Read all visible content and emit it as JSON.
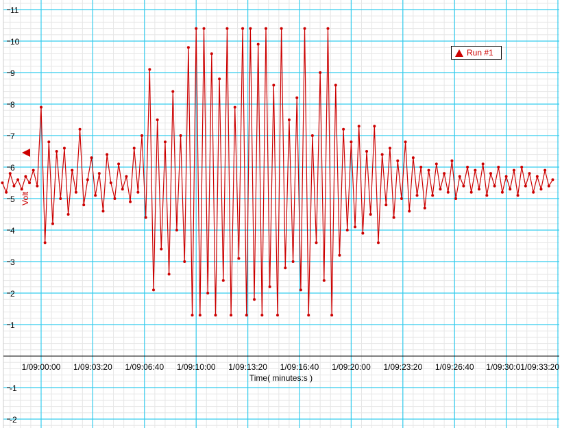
{
  "chart_data": {
    "type": "line",
    "title": "",
    "xlabel": "Time( minutes:s )",
    "ylabel": "Volt",
    "ylim": [
      -2.2,
      11.2
    ],
    "xlim": [
      "1/08:57:42",
      "1/09:33:20"
    ],
    "grid": true,
    "legend_placement": "top-right",
    "x_tick_labels": [
      "1/09:00:00",
      "1/09:03:20",
      "1/09:06:40",
      "1/09:10:00",
      "1/09:13:20",
      "1/09:16:40",
      "1/09:20:00",
      "1/09:23:20",
      "1/09:26:40",
      "1/09:30:01/09:33:20"
    ],
    "y_ticks": [
      -2,
      -1,
      1,
      2,
      3,
      4,
      5,
      6,
      7,
      8,
      9,
      10,
      11
    ],
    "colors": {
      "series": "#cc0000",
      "major_grid": "#33ccee",
      "minor_grid": "#e6e6e6"
    },
    "series": [
      {
        "name": "Run #1",
        "marker": "circle",
        "x": [
          "1/08:57:30",
          "1/08:57:45",
          "1/08:58:00",
          "1/08:58:15",
          "1/08:58:30",
          "1/08:58:45",
          "1/08:59:00",
          "1/08:59:15",
          "1/08:59:30",
          "1/08:59:45",
          "1/09:00:00",
          "1/09:00:15",
          "1/09:00:30",
          "1/09:00:45",
          "1/09:01:00",
          "1/09:01:15",
          "1/09:01:30",
          "1/09:01:45",
          "1/09:02:00",
          "1/09:02:15",
          "1/09:02:30",
          "1/09:02:45",
          "1/09:03:00",
          "1/09:03:15",
          "1/09:03:30",
          "1/09:03:45",
          "1/09:04:00",
          "1/09:04:15",
          "1/09:04:30",
          "1/09:04:45",
          "1/09:05:00",
          "1/09:05:15",
          "1/09:05:30",
          "1/09:05:45",
          "1/09:06:00",
          "1/09:06:15",
          "1/09:06:30",
          "1/09:06:45",
          "1/09:07:00",
          "1/09:07:15",
          "1/09:07:30",
          "1/09:07:45",
          "1/09:08:00",
          "1/09:08:15",
          "1/09:08:30",
          "1/09:08:45",
          "1/09:09:00",
          "1/09:09:15",
          "1/09:09:30",
          "1/09:09:45",
          "1/09:10:00",
          "1/09:10:15",
          "1/09:10:30",
          "1/09:10:45",
          "1/09:11:00",
          "1/09:11:15",
          "1/09:11:30",
          "1/09:11:45",
          "1/09:12:00",
          "1/09:12:15",
          "1/09:12:30",
          "1/09:12:45",
          "1/09:13:00",
          "1/09:13:15",
          "1/09:13:30",
          "1/09:13:45",
          "1/09:14:00",
          "1/09:14:15",
          "1/09:14:30",
          "1/09:14:45",
          "1/09:15:00",
          "1/09:15:15",
          "1/09:15:30",
          "1/09:15:45",
          "1/09:16:00",
          "1/09:16:15",
          "1/09:16:30",
          "1/09:16:45",
          "1/09:17:00",
          "1/09:17:15",
          "1/09:17:30",
          "1/09:17:45",
          "1/09:18:00",
          "1/09:18:15",
          "1/09:18:30",
          "1/09:18:45",
          "1/09:19:00",
          "1/09:19:15",
          "1/09:19:30",
          "1/09:19:45",
          "1/09:20:00",
          "1/09:20:15",
          "1/09:20:30",
          "1/09:20:45",
          "1/09:21:00",
          "1/09:21:15",
          "1/09:21:30",
          "1/09:21:45",
          "1/09:22:00",
          "1/09:22:15",
          "1/09:22:30",
          "1/09:22:45",
          "1/09:23:00",
          "1/09:23:15",
          "1/09:23:30",
          "1/09:23:45",
          "1/09:24:00",
          "1/09:24:15",
          "1/09:24:30",
          "1/09:24:45",
          "1/09:25:00",
          "1/09:25:15",
          "1/09:25:30",
          "1/09:25:45",
          "1/09:26:00",
          "1/09:26:15",
          "1/09:26:30",
          "1/09:26:45",
          "1/09:27:00",
          "1/09:27:15",
          "1/09:27:30",
          "1/09:27:45",
          "1/09:28:00",
          "1/09:28:15",
          "1/09:28:30",
          "1/09:28:45",
          "1/09:29:00",
          "1/09:29:15",
          "1/09:29:30",
          "1/09:29:45",
          "1/09:30:00",
          "1/09:30:15",
          "1/09:30:30",
          "1/09:30:45",
          "1/09:31:00",
          "1/09:31:15",
          "1/09:31:30",
          "1/09:31:45",
          "1/09:32:00",
          "1/09:32:15",
          "1/09:32:30",
          "1/09:32:45",
          "1/09:33:00"
        ],
        "values": [
          5.5,
          5.2,
          5.8,
          5.4,
          5.6,
          5.3,
          5.7,
          5.5,
          5.9,
          5.4,
          7.9,
          3.6,
          6.8,
          4.2,
          6.5,
          5.0,
          6.6,
          4.5,
          5.9,
          5.2,
          7.2,
          4.8,
          5.6,
          6.3,
          5.1,
          5.8,
          4.6,
          6.4,
          5.5,
          5.0,
          6.1,
          5.3,
          5.7,
          4.9,
          6.6,
          5.2,
          7.0,
          4.4,
          9.1,
          2.1,
          7.5,
          3.4,
          6.8,
          2.6,
          8.4,
          4.0,
          7.0,
          3.0,
          9.8,
          1.3,
          10.4,
          1.3,
          10.4,
          2.0,
          9.6,
          1.3,
          8.8,
          2.4,
          10.4,
          1.3,
          7.9,
          3.1,
          10.4,
          1.3,
          10.4,
          1.8,
          9.9,
          1.3,
          10.4,
          2.2,
          8.6,
          1.3,
          10.4,
          2.8,
          7.5,
          3.0,
          8.2,
          2.1,
          10.4,
          1.3,
          7.0,
          3.6,
          9.0,
          2.4,
          10.4,
          1.3,
          8.6,
          3.2,
          7.2,
          4.0,
          6.8,
          4.1,
          7.3,
          3.9,
          6.5,
          4.5,
          7.3,
          3.6,
          6.4,
          4.8,
          6.6,
          4.4,
          6.2,
          5.0,
          6.8,
          4.6,
          6.3,
          5.1,
          6.0,
          4.7,
          5.9,
          5.1,
          6.1,
          5.3,
          5.8,
          5.2,
          6.2,
          5.0,
          5.7,
          5.4,
          6.0,
          5.2,
          5.9,
          5.3,
          6.1,
          5.1,
          5.8,
          5.4,
          6.0,
          5.2,
          5.7,
          5.3,
          5.9,
          5.1,
          6.0,
          5.4,
          5.8,
          5.2,
          5.7,
          5.3,
          5.9,
          5.4,
          5.6
        ]
      }
    ]
  }
}
